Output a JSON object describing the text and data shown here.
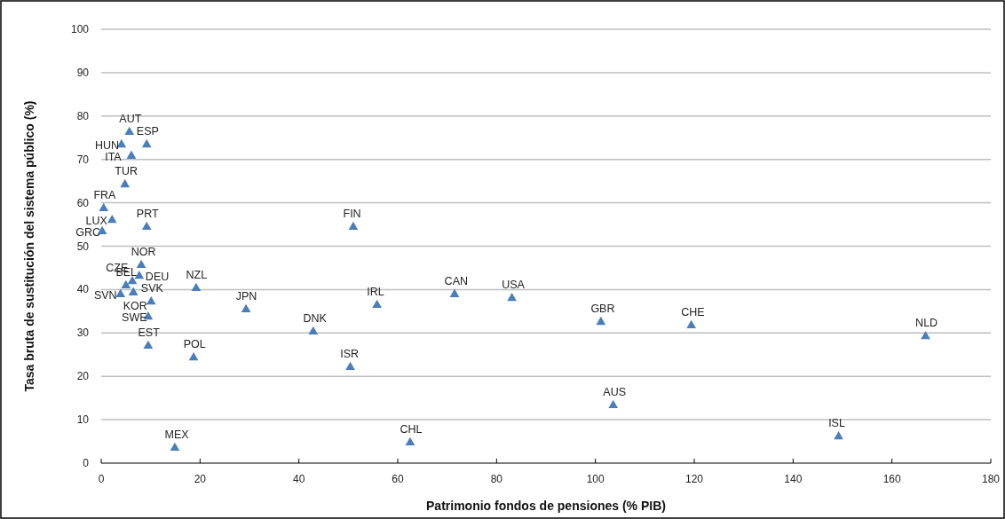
{
  "chart_data": {
    "type": "scatter",
    "xlabel": "Patrimonio fondos de pensiones (% PIB)",
    "ylabel": "Tasa bruta de sustitución del sistema público (%)",
    "xlim": [
      0,
      180
    ],
    "xticks": [
      0,
      20,
      40,
      60,
      80,
      100,
      120,
      140,
      160,
      180
    ],
    "ylim": [
      0,
      100
    ],
    "yticks": [
      0,
      10,
      20,
      30,
      40,
      50,
      60,
      70,
      80,
      90,
      100
    ],
    "grid": "y",
    "marker": "triangle",
    "series": [
      {
        "color": "#4a7ebb",
        "x": [
          5.7,
          4.1,
          9.2,
          6.1,
          4.8,
          0.5,
          2.2,
          0.2,
          9.2,
          8.1,
          7.7,
          6.3,
          3.9,
          5.0,
          6.5,
          10.1,
          9.5,
          9.5,
          18.7,
          19.2,
          29.3,
          51.0,
          42.9,
          55.8,
          71.5,
          83.1,
          50.4,
          14.9,
          62.5,
          101.1,
          119.4,
          166.8,
          103.6,
          149.2
        ],
        "values": [
          76.3,
          73.4,
          73.4,
          70.8,
          64.2,
          58.7,
          56.0,
          53.4,
          54.4,
          45.6,
          43.1,
          41.9,
          38.9,
          40.9,
          39.3,
          37.2,
          33.7,
          27.0,
          24.3,
          40.3,
          35.4,
          54.4,
          30.3,
          36.4,
          38.9,
          38.0,
          22.1,
          3.5,
          4.7,
          32.5,
          31.7,
          29.2,
          13.3,
          6.1
        ]
      }
    ],
    "annotations": [
      {
        "text": "AUT",
        "x": 5.7,
        "y": 76.3
      },
      {
        "text": "HUN",
        "x": 4.1,
        "y": 73.4
      },
      {
        "text": "ESP",
        "x": 9.2,
        "y": 73.4
      },
      {
        "text": "ITA",
        "x": 6.1,
        "y": 70.8
      },
      {
        "text": "TUR",
        "x": 4.8,
        "y": 64.2
      },
      {
        "text": "FRA",
        "x": 0.5,
        "y": 58.7
      },
      {
        "text": "LUX",
        "x": 2.2,
        "y": 56.0
      },
      {
        "text": "GRC",
        "x": 0.2,
        "y": 53.4
      },
      {
        "text": "PRT",
        "x": 9.2,
        "y": 54.4
      },
      {
        "text": "NOR",
        "x": 8.1,
        "y": 45.6
      },
      {
        "text": "DEU",
        "x": 7.7,
        "y": 43.1
      },
      {
        "text": "CZE",
        "x": 6.3,
        "y": 41.9
      },
      {
        "text": "SVN",
        "x": 3.9,
        "y": 38.9
      },
      {
        "text": "BEL",
        "x": 5.0,
        "y": 40.9
      },
      {
        "text": "KOR",
        "x": 6.5,
        "y": 39.3
      },
      {
        "text": "SVK",
        "x": 10.1,
        "y": 37.2
      },
      {
        "text": "SWE",
        "x": 9.5,
        "y": 33.7
      },
      {
        "text": "EST",
        "x": 9.5,
        "y": 27.0
      },
      {
        "text": "POL",
        "x": 18.7,
        "y": 24.3
      },
      {
        "text": "NZL",
        "x": 19.2,
        "y": 40.3
      },
      {
        "text": "JPN",
        "x": 29.3,
        "y": 35.4
      },
      {
        "text": "FIN",
        "x": 51.0,
        "y": 54.4
      },
      {
        "text": "DNK",
        "x": 42.9,
        "y": 30.3
      },
      {
        "text": "IRL",
        "x": 55.8,
        "y": 36.4
      },
      {
        "text": "CAN",
        "x": 71.5,
        "y": 38.9
      },
      {
        "text": "USA",
        "x": 83.1,
        "y": 38.0
      },
      {
        "text": "ISR",
        "x": 50.4,
        "y": 22.1
      },
      {
        "text": "MEX",
        "x": 14.9,
        "y": 3.5
      },
      {
        "text": "CHL",
        "x": 62.5,
        "y": 4.7
      },
      {
        "text": "GBR",
        "x": 101.1,
        "y": 32.5
      },
      {
        "text": "CHE",
        "x": 119.4,
        "y": 31.7
      },
      {
        "text": "NLD",
        "x": 166.8,
        "y": 29.2
      },
      {
        "text": "AUS",
        "x": 103.6,
        "y": 13.3
      },
      {
        "text": "ISL",
        "x": 149.2,
        "y": 6.1
      }
    ]
  }
}
